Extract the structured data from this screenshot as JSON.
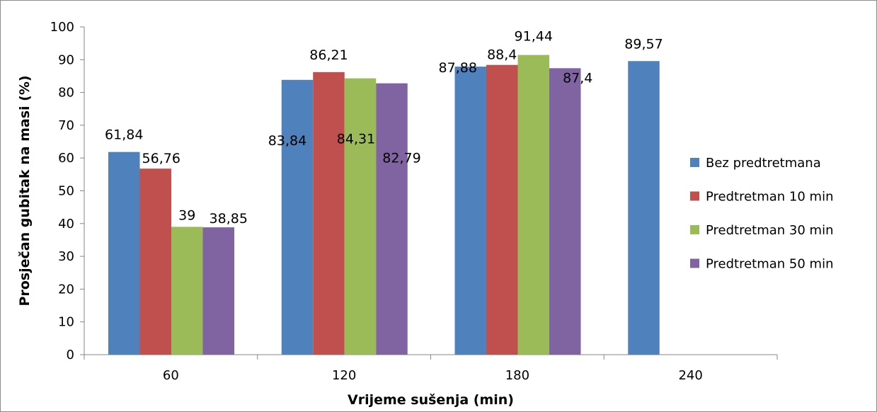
{
  "chart_data": {
    "type": "bar",
    "categories": [
      "60",
      "120",
      "180",
      "240"
    ],
    "series": [
      {
        "name": "Bez predtretmana",
        "color": "#4f81bd",
        "values": [
          61.84,
          83.84,
          87.88,
          89.57
        ],
        "labels": [
          "61,84",
          "83,84",
          "87,88",
          "89,57"
        ]
      },
      {
        "name": "Predtretman 10 min",
        "color": "#c0504d",
        "values": [
          56.76,
          86.21,
          88.4,
          null
        ],
        "labels": [
          "56,76",
          "86,21",
          "88,4",
          ""
        ]
      },
      {
        "name": "Predtretman 30 min",
        "color": "#9bbb59",
        "values": [
          39,
          84.31,
          91.44,
          null
        ],
        "labels": [
          "39",
          "84,31",
          "91,44",
          ""
        ]
      },
      {
        "name": "Predtretman 50 min",
        "color": "#8064a2",
        "values": [
          38.85,
          82.79,
          87.4,
          null
        ],
        "labels": [
          "38,85",
          "82,79",
          "87,4",
          ""
        ]
      }
    ],
    "xlabel": "Vrijeme sušenja (min)",
    "ylabel": "Prosječan gubitak na masi (%)",
    "ylim": [
      0,
      100
    ],
    "yticks": [
      "0",
      "10",
      "20",
      "30",
      "40",
      "50",
      "60",
      "70",
      "80",
      "90",
      "100"
    ],
    "grid": false,
    "legend_position": "right"
  }
}
